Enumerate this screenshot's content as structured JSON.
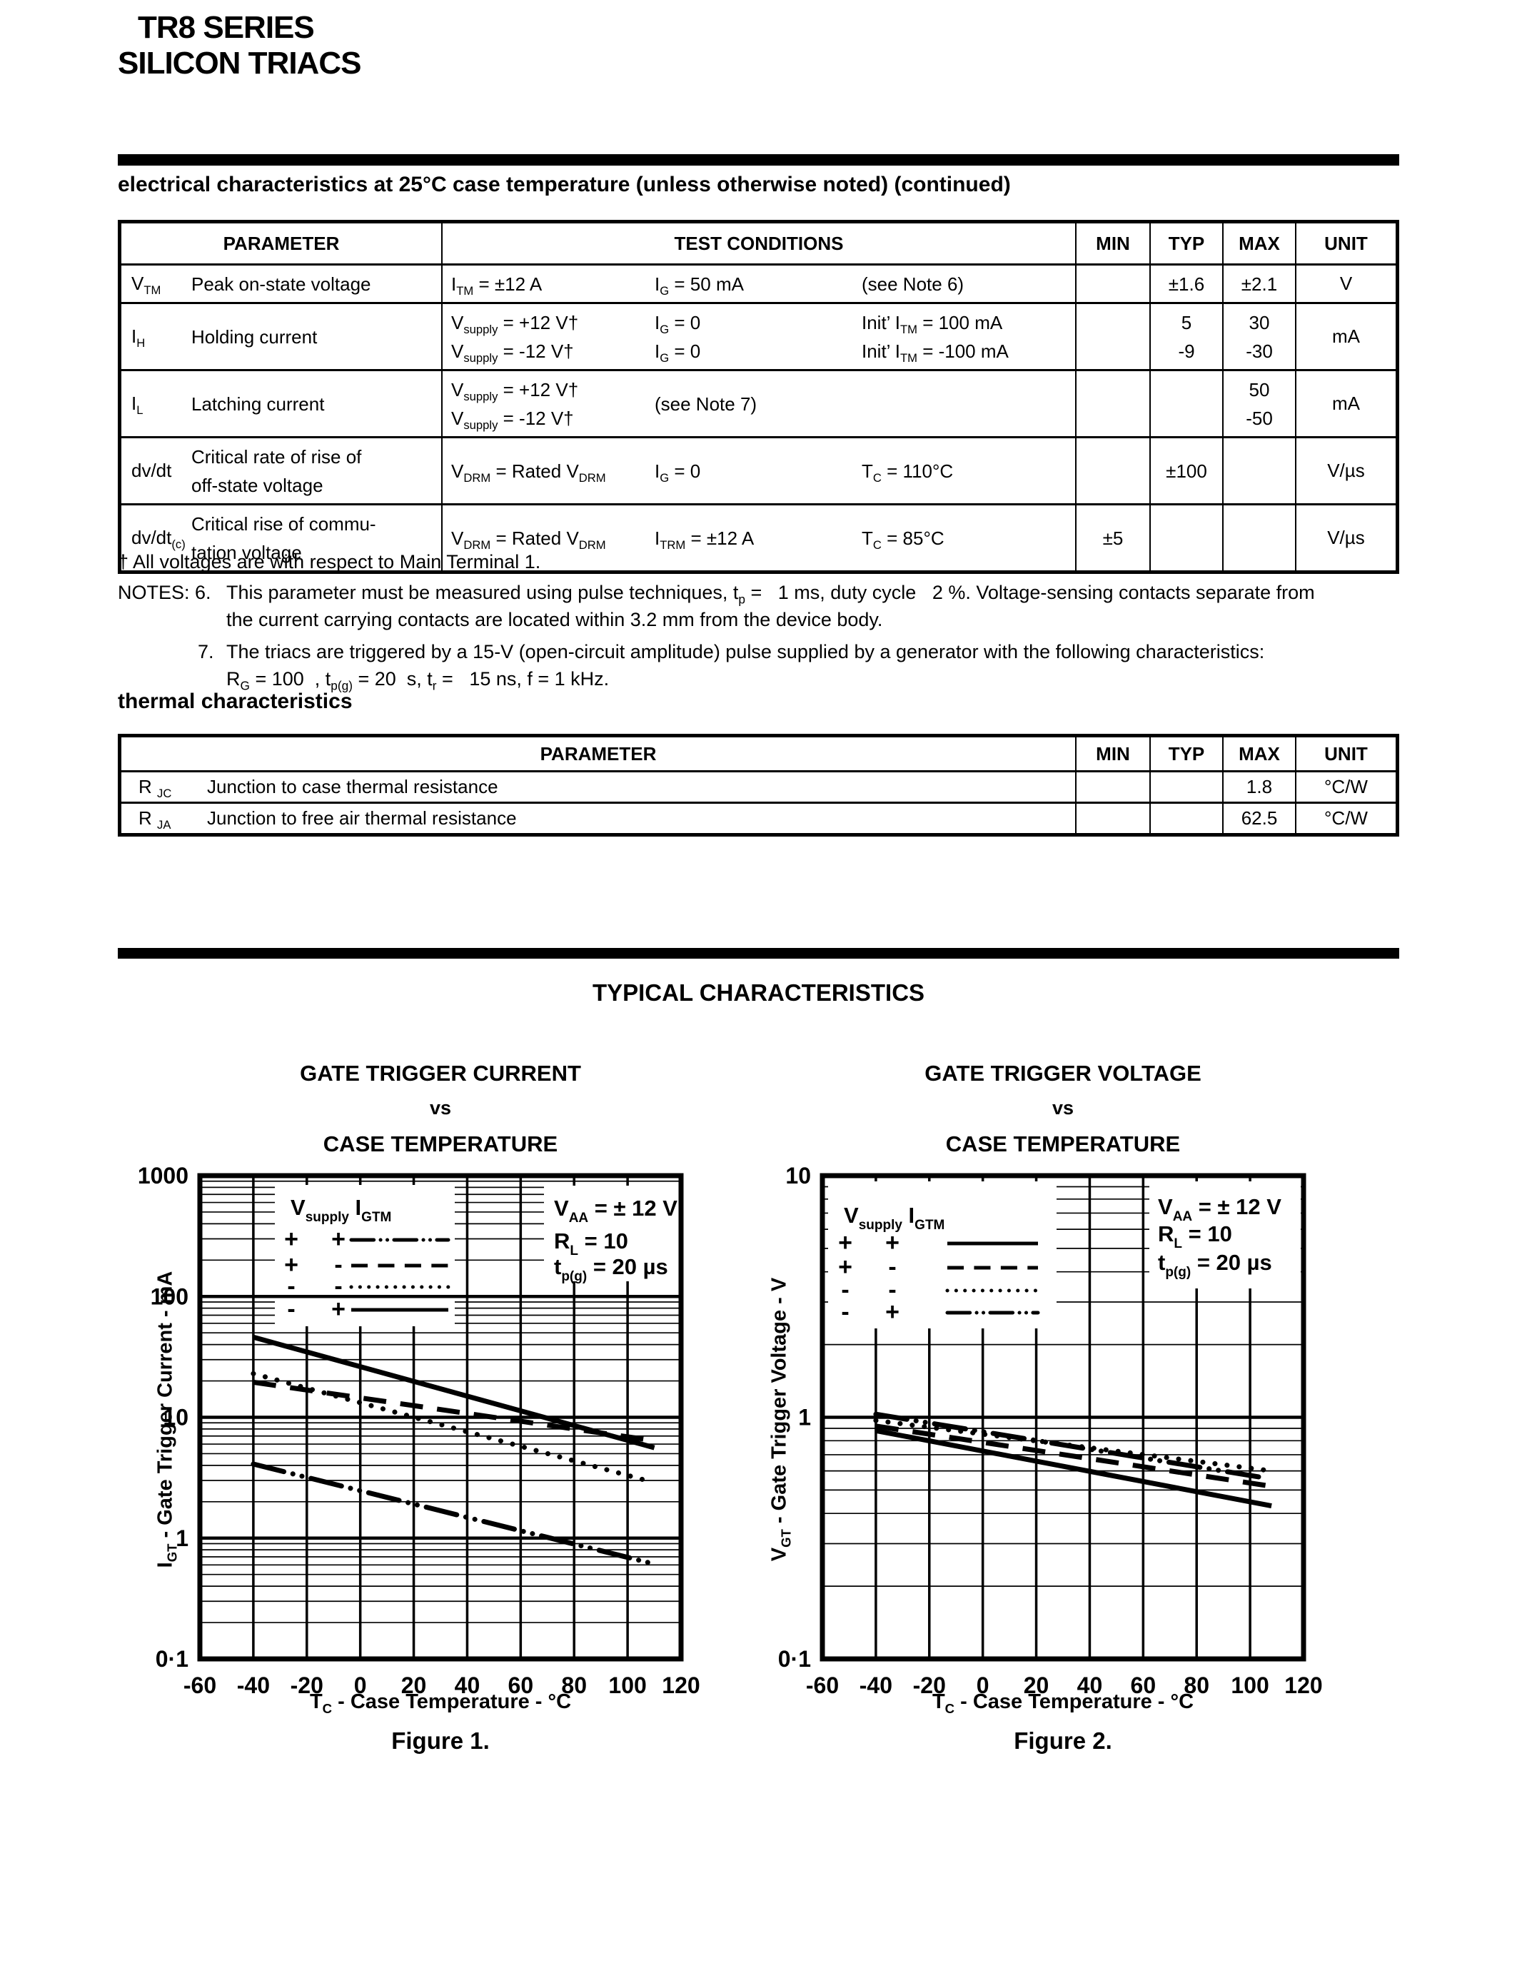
{
  "header": {
    "line1": "TR8 SERIES",
    "line2": "SILICON TRIACS"
  },
  "electrical": {
    "title": "electrical characteristics at 25°C case temperature (unless otherwise noted) (continued)",
    "headers": {
      "parameter": "PARAMETER",
      "conditions": "TEST CONDITIONS",
      "min": "MIN",
      "typ": "TYP",
      "max": "MAX",
      "unit": "UNIT"
    },
    "rows": [
      {
        "sym": [
          "V",
          {
            "s": "TM"
          }
        ],
        "name": [
          [
            "Peak on-state voltage"
          ]
        ],
        "cond": {
          "c1": [
            [
              "I",
              {
                "s": "TM"
              },
              " = ±12 A"
            ]
          ],
          "c2": [
            [
              "I",
              {
                "s": "G"
              },
              " = 50 mA"
            ]
          ],
          "c3": [
            [
              "(see Note 6)"
            ]
          ]
        },
        "min": [],
        "typ": [
          "±1.6"
        ],
        "max": [
          "±2.1"
        ],
        "unit": "V",
        "lines": 1
      },
      {
        "sym": [
          "I",
          {
            "s": "H"
          }
        ],
        "name": [
          [
            "Holding current"
          ]
        ],
        "cond": {
          "c1": [
            [
              "V",
              {
                "s": "supply"
              },
              " = +12 V†"
            ],
            [
              "V",
              {
                "s": "supply"
              },
              " =  -12 V†"
            ]
          ],
          "c2": [
            [
              "I",
              {
                "s": "G"
              },
              " = 0"
            ],
            [
              "I",
              {
                "s": "G"
              },
              " = 0"
            ]
          ],
          "c3": [
            [
              "Init’ I",
              {
                "s": "TM"
              },
              " =  100 mA"
            ],
            [
              "Init’ I",
              {
                "s": "TM"
              },
              " =  -100 mA"
            ]
          ]
        },
        "min": [],
        "typ": [
          "5",
          "-9"
        ],
        "max": [
          "30",
          "-30"
        ],
        "unit": "mA",
        "lines": 2
      },
      {
        "sym": [
          "I",
          {
            "s": "L"
          }
        ],
        "name": [
          [
            "Latching current"
          ]
        ],
        "cond": {
          "c1": [
            [
              "V",
              {
                "s": "supply"
              },
              " = +12 V†"
            ],
            [
              "V",
              {
                "s": "supply"
              },
              " =  -12 V†"
            ]
          ],
          "c2": [
            [
              "(see Note 7)"
            ]
          ],
          "c3": []
        },
        "min": [],
        "typ": [],
        "max": [
          "50",
          "-50"
        ],
        "unit": "mA",
        "lines": 2
      },
      {
        "sym": [
          "dv/dt"
        ],
        "name": [
          [
            "Critical rate of rise of"
          ],
          [
            "off-state voltage"
          ]
        ],
        "cond": {
          "c1": [
            [
              "V",
              {
                "s": "DRM"
              },
              " = Rated V",
              {
                "s": "DRM"
              }
            ]
          ],
          "c2": [
            [
              "I",
              {
                "s": "G"
              },
              " = 0"
            ]
          ],
          "c3": [
            [
              "T",
              {
                "s": "C"
              },
              " = 110°C"
            ]
          ]
        },
        "min": [],
        "typ": [
          "±100"
        ],
        "max": [],
        "unit": "V/µs",
        "lines": 2
      },
      {
        "sym": [
          "dv/dt",
          {
            "s": "(c)"
          }
        ],
        "name": [
          [
            "Critical rise of commu-"
          ],
          [
            "tation voltage"
          ]
        ],
        "cond": {
          "c1": [
            [
              "V",
              {
                "s": "DRM"
              },
              " = Rated V",
              {
                "s": "DRM"
              }
            ]
          ],
          "c2": [
            [
              "I",
              {
                "s": "TRM"
              },
              " = ±12 A"
            ]
          ],
          "c3": [
            [
              "T",
              {
                "s": "C"
              },
              " = 85°C"
            ]
          ]
        },
        "min": [
          "±5"
        ],
        "typ": [],
        "max": [],
        "unit": "V/µs",
        "lines": 2
      }
    ]
  },
  "notes": {
    "dagger": [
      "† All voltages are with respect to Main Terminal 1."
    ],
    "n6_label": "NOTES: 6.",
    "n6_line1": [
      "This parameter must be measured using pulse techniques, t",
      {
        "s": "p"
      },
      " =   1 ms, duty cycle   2 %. Voltage-sensing contacts separate from"
    ],
    "n6_line2": [
      "the current carrying contacts are located within 3.2 mm from the device body."
    ],
    "n7_label": "7.",
    "n7_line1": [
      "The triacs are triggered by a 15-V (open-circuit amplitude) pulse supplied by a generator with the following characteristics:"
    ],
    "n7_line2": [
      "R",
      {
        "s": "G"
      },
      " = 100  , t",
      {
        "s": "p(g)"
      },
      " = 20  s, t",
      {
        "s": "r"
      },
      " =   15 ns, f = 1 kHz."
    ]
  },
  "thermal": {
    "title": "thermal characteristics",
    "headers": {
      "parameter": "PARAMETER",
      "min": "MIN",
      "typ": "TYP",
      "max": "MAX",
      "unit": "UNIT"
    },
    "rows": [
      {
        "sym": [
          "R ",
          {
            "s": "JC"
          }
        ],
        "name": "Junction to case thermal resistance",
        "min": "",
        "typ": "",
        "max": "1.8",
        "unit": "°C/W"
      },
      {
        "sym": [
          "R ",
          {
            "s": "JA"
          }
        ],
        "name": "Junction to free air thermal resistance",
        "min": "",
        "typ": "",
        "max": "62.5",
        "unit": "°C/W"
      }
    ]
  },
  "typical": {
    "title": "TYPICAL CHARACTERISTICS"
  },
  "chart_data": [
    {
      "type": "line",
      "title": "GATE TRIGGER CURRENT",
      "title_vs": "vs",
      "title_sub": "CASE TEMPERATURE",
      "caption": "Figure 1.",
      "xlabel": [
        "T",
        {
          "s": "C"
        },
        " - Case Temperature - °C"
      ],
      "ylabel": [
        "I",
        {
          "s": "GT"
        },
        " - Gate Trigger Current - mA"
      ],
      "xlim": [
        -60,
        120
      ],
      "x_ticks": [
        -60,
        -40,
        -20,
        0,
        20,
        40,
        60,
        80,
        100,
        120
      ],
      "y_scale": "log",
      "ylim": [
        0.1,
        1000
      ],
      "y_decade_labels": [
        "1000",
        "100",
        "10",
        "1",
        "0·1"
      ],
      "grid": "log-minor",
      "legend_position": "upper-left",
      "conditions_position": "upper-right",
      "legend_header": [
        [
          "V",
          {
            "s": "supply"
          }
        ],
        [
          "I",
          {
            "s": "GTM"
          }
        ]
      ],
      "legend_rows": [
        {
          "vsupply": "+",
          "igtm": "+",
          "style": "dashdotdot"
        },
        {
          "vsupply": "+",
          "igtm": "-",
          "style": "dash"
        },
        {
          "vsupply": "-",
          "igtm": "-",
          "style": "dot"
        },
        {
          "vsupply": "-",
          "igtm": "+",
          "style": "solid"
        }
      ],
      "conditions": [
        [
          "V",
          {
            "s": "AA"
          },
          " = ± 12 V"
        ],
        [
          "R",
          {
            "s": "L"
          },
          " = 10"
        ],
        [
          "t",
          {
            "s": "p(g)"
          },
          " = 20 µs"
        ]
      ],
      "series": [
        {
          "label": "Vsupply + / IGTM +",
          "style": "dashdotdot",
          "points": [
            [
              -40,
              4.1
            ],
            [
              110,
              0.61
            ]
          ]
        },
        {
          "label": "Vsupply + / IGTM -",
          "style": "dash",
          "points": [
            [
              -40,
              19.5
            ],
            [
              108,
              6.5
            ]
          ]
        },
        {
          "label": "Vsupply - / IGTM -",
          "style": "dot",
          "points": [
            [
              -40,
              23
            ],
            [
              107,
              3.0
            ]
          ]
        },
        {
          "label": "Vsupply - / IGTM +",
          "style": "solid",
          "points": [
            [
              -40,
              46
            ],
            [
              110,
              5.6
            ]
          ]
        }
      ]
    },
    {
      "type": "line",
      "title": "GATE TRIGGER VOLTAGE",
      "title_vs": "vs",
      "title_sub": "CASE TEMPERATURE",
      "caption": "Figure 2.",
      "xlabel": [
        "T",
        {
          "s": "C"
        },
        " - Case Temperature - °C"
      ],
      "ylabel": [
        "V",
        {
          "s": "GT"
        },
        " - Gate Trigger Voltage - V"
      ],
      "xlim": [
        -60,
        120
      ],
      "x_ticks": [
        -60,
        -40,
        -20,
        0,
        20,
        40,
        60,
        80,
        100,
        120
      ],
      "y_scale": "log",
      "ylim": [
        0.1,
        10
      ],
      "y_decade_labels": [
        "10",
        "1",
        "0·1"
      ],
      "grid": "log-minor",
      "legend_position": "upper-left",
      "conditions_position": "upper-right",
      "legend_header": [
        [
          "V",
          {
            "s": "supply"
          }
        ],
        [
          "I",
          {
            "s": "GTM"
          }
        ]
      ],
      "legend_rows": [
        {
          "vsupply": "+",
          "igtm": "+",
          "style": "solid"
        },
        {
          "vsupply": "+",
          "igtm": "-",
          "style": "dash"
        },
        {
          "vsupply": "-",
          "igtm": "-",
          "style": "dot"
        },
        {
          "vsupply": "-",
          "igtm": "+",
          "style": "dashdotdot"
        }
      ],
      "conditions": [
        [
          "V",
          {
            "s": "AA"
          },
          " = ± 12 V"
        ],
        [
          "R",
          {
            "s": "L"
          },
          " = 10"
        ],
        [
          "t",
          {
            "s": "p(g)"
          },
          " = 20 µs"
        ]
      ],
      "series": [
        {
          "label": "Vsupply + / IGTM +",
          "style": "solid",
          "points": [
            [
              -40,
              0.88
            ],
            [
              108,
              0.43
            ]
          ]
        },
        {
          "label": "Vsupply + / IGTM -",
          "style": "dash",
          "points": [
            [
              -40,
              0.92
            ],
            [
              107,
              0.52
            ]
          ]
        },
        {
          "label": "Vsupply - / IGTM -",
          "style": "dot",
          "points": [
            [
              -40,
              0.97
            ],
            [
              108,
              0.6
            ]
          ]
        },
        {
          "label": "Vsupply - / IGTM +",
          "style": "dashdotdot",
          "points": [
            [
              -40,
              1.03
            ],
            [
              106,
              0.56
            ]
          ]
        }
      ]
    }
  ]
}
